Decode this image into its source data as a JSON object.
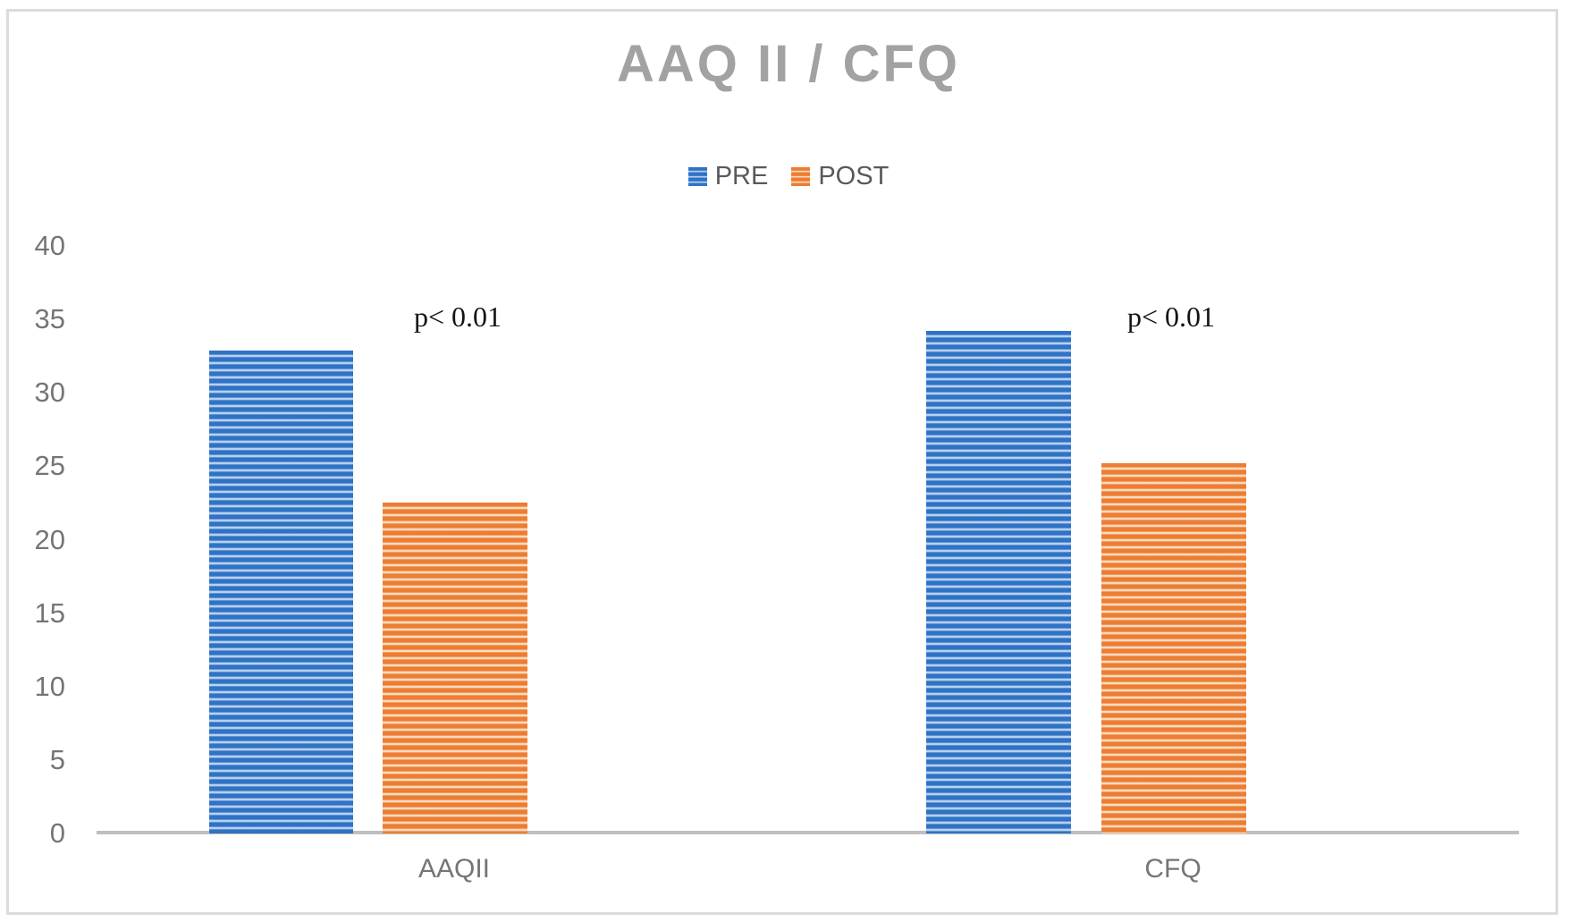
{
  "title": "AAQ II / CFQ",
  "legend": {
    "items": [
      {
        "label": "PRE",
        "color": "#2e73c5",
        "stripe_light": "#c6d9f1"
      },
      {
        "label": "POST",
        "color": "#ed7d31",
        "stripe_light": "#fbe2ce"
      }
    ],
    "position": "top"
  },
  "annotations": [
    {
      "text": "p< 0.01",
      "group": "AAQII"
    },
    {
      "text": "p< 0.01",
      "group": "CFQ"
    }
  ],
  "axis": {
    "y_tick_labels": [
      "40",
      "35",
      "30",
      "25",
      "20",
      "15",
      "10",
      "5",
      "0"
    ],
    "x_category_labels": [
      "AAQII",
      "CFQ"
    ],
    "axis_line_color": "#bfbfbf",
    "tick_label_color": "#757575"
  },
  "colors": {
    "title_gray": "#a2a2a2",
    "legend_text": "#595959",
    "pre_blue": "#2e73c5",
    "pre_blue_light": "#c6d9f1",
    "post_orange": "#ed7d31",
    "post_orange_light": "#fbe2ce",
    "frame_border": "#dbdbdb",
    "annotation_black": "#141414"
  },
  "chart_data": {
    "type": "bar",
    "title": "AAQ II / CFQ",
    "categories": [
      "AAQII",
      "CFQ"
    ],
    "series": [
      {
        "name": "PRE",
        "values": [
          32.9,
          34.2
        ]
      },
      {
        "name": "POST",
        "values": [
          22.5,
          25.2
        ]
      }
    ],
    "xlabel": "",
    "ylabel": "",
    "ylim": [
      0,
      40
    ],
    "yticks": [
      0,
      5,
      10,
      15,
      20,
      25,
      30,
      35,
      40
    ],
    "grid": false,
    "legend_position": "top-center",
    "bar_fill_pattern": "horizontal-stripes",
    "annotations": [
      "p< 0.01",
      "p< 0.01"
    ]
  }
}
